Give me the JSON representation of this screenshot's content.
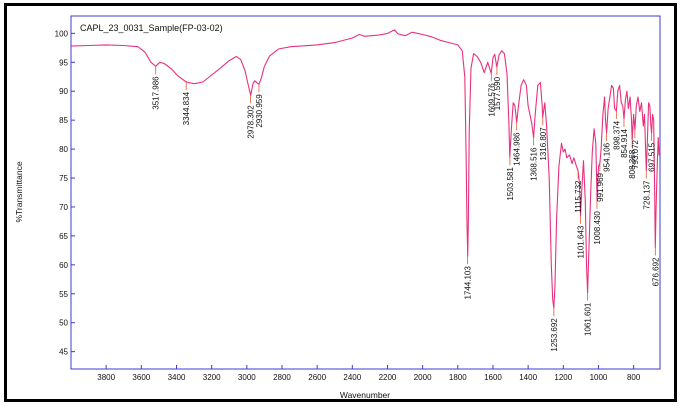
{
  "chart_data": {
    "type": "line",
    "title": "CAPL_23_0031_Sample(FP-03-02)",
    "xlabel": "Wavenumber",
    "ylabel": "%Transmittance",
    "xlim": [
      4000,
      650
    ],
    "ylim": [
      42,
      103
    ],
    "x_reversed": true,
    "grid": false,
    "colors": {
      "trace": "#e8317e",
      "annotation": "#e05a2a",
      "frame": "#3b3bd6"
    },
    "x_ticks": [
      3800,
      3600,
      3400,
      3200,
      3000,
      2800,
      2600,
      2400,
      2200,
      2000,
      1800,
      1600,
      1400,
      1200,
      1000,
      800
    ],
    "y_ticks": [
      45,
      50,
      55,
      60,
      65,
      70,
      75,
      80,
      85,
      90,
      95,
      100
    ],
    "peaks": [
      {
        "label": "3517.986",
        "x": 3517.986,
        "y": 94.3
      },
      {
        "label": "3344.834",
        "x": 3344.834,
        "y": 91.6
      },
      {
        "label": "2978.302",
        "x": 2978.302,
        "y": 89.3
      },
      {
        "label": "2930.959",
        "x": 2930.959,
        "y": 91.2
      },
      {
        "label": "1744.103",
        "x": 1744.103,
        "y": 61.5
      },
      {
        "label": "1609.576",
        "x": 1609.576,
        "y": 93.1
      },
      {
        "label": "1577.590",
        "x": 1577.59,
        "y": 94.2
      },
      {
        "label": "1503.581",
        "x": 1503.581,
        "y": 78.6
      },
      {
        "label": "1464.986",
        "x": 1464.986,
        "y": 84.6
      },
      {
        "label": "1368.516",
        "x": 1368.516,
        "y": 82.0
      },
      {
        "label": "1316.807",
        "x": 1316.807,
        "y": 85.5
      },
      {
        "label": "1253.692",
        "x": 1253.692,
        "y": 52.5
      },
      {
        "label": "1115.732",
        "x": 1115.732,
        "y": 76.3
      },
      {
        "label": "1101.643",
        "x": 1101.643,
        "y": 68.5
      },
      {
        "label": "1061.601",
        "x": 1061.601,
        "y": 55.2
      },
      {
        "label": "1008.430",
        "x": 1008.43,
        "y": 71.0
      },
      {
        "label": "991.969",
        "x": 991.969,
        "y": 77.6
      },
      {
        "label": "954.106",
        "x": 954.106,
        "y": 82.8
      },
      {
        "label": "898.374",
        "x": 898.374,
        "y": 86.6
      },
      {
        "label": "854.914",
        "x": 854.914,
        "y": 85.2
      },
      {
        "label": "808.368",
        "x": 808.368,
        "y": 81.6
      },
      {
        "label": "793.072",
        "x": 793.072,
        "y": 83.3
      },
      {
        "label": "728.137",
        "x": 728.137,
        "y": 76.3
      },
      {
        "label": "697.515",
        "x": 697.515,
        "y": 82.8
      },
      {
        "label": "676.692",
        "x": 676.692,
        "y": 63.0
      }
    ],
    "series": [
      {
        "points": [
          [
            4000,
            97.8
          ],
          [
            3900,
            97.9
          ],
          [
            3800,
            98.0
          ],
          [
            3700,
            97.9
          ],
          [
            3620,
            97.7
          ],
          [
            3580,
            96.8
          ],
          [
            3545,
            95.0
          ],
          [
            3518,
            94.3
          ],
          [
            3495,
            95.0
          ],
          [
            3470,
            94.8
          ],
          [
            3430,
            93.9
          ],
          [
            3390,
            92.6
          ],
          [
            3345,
            91.6
          ],
          [
            3300,
            91.3
          ],
          [
            3250,
            91.6
          ],
          [
            3200,
            92.8
          ],
          [
            3150,
            94.0
          ],
          [
            3100,
            95.3
          ],
          [
            3060,
            96.0
          ],
          [
            3035,
            95.5
          ],
          [
            3010,
            93.5
          ],
          [
            2990,
            90.8
          ],
          [
            2978,
            89.3
          ],
          [
            2965,
            91.3
          ],
          [
            2955,
            91.8
          ],
          [
            2940,
            91.4
          ],
          [
            2931,
            91.2
          ],
          [
            2918,
            92.2
          ],
          [
            2900,
            94.3
          ],
          [
            2870,
            96.1
          ],
          [
            2820,
            97.3
          ],
          [
            2750,
            97.7
          ],
          [
            2600,
            98.0
          ],
          [
            2500,
            98.4
          ],
          [
            2400,
            99.2
          ],
          [
            2360,
            99.8
          ],
          [
            2330,
            99.5
          ],
          [
            2250,
            99.7
          ],
          [
            2200,
            100.0
          ],
          [
            2160,
            100.6
          ],
          [
            2140,
            99.9
          ],
          [
            2100,
            99.6
          ],
          [
            2060,
            100.2
          ],
          [
            2000,
            99.8
          ],
          [
            1950,
            99.4
          ],
          [
            1900,
            98.8
          ],
          [
            1850,
            98.4
          ],
          [
            1800,
            98.0
          ],
          [
            1775,
            97.0
          ],
          [
            1760,
            92.5
          ],
          [
            1752,
            78.0
          ],
          [
            1748,
            68.0
          ],
          [
            1744,
            61.5
          ],
          [
            1740,
            68.0
          ],
          [
            1735,
            83.0
          ],
          [
            1725,
            94.0
          ],
          [
            1710,
            96.5
          ],
          [
            1690,
            96.0
          ],
          [
            1670,
            95.0
          ],
          [
            1650,
            93.2
          ],
          [
            1630,
            95.0
          ],
          [
            1610,
            93.1
          ],
          [
            1600,
            95.8
          ],
          [
            1590,
            96.4
          ],
          [
            1578,
            94.2
          ],
          [
            1565,
            96.3
          ],
          [
            1550,
            97.0
          ],
          [
            1535,
            96.5
          ],
          [
            1520,
            93.0
          ],
          [
            1510,
            85.0
          ],
          [
            1504,
            78.6
          ],
          [
            1495,
            83.5
          ],
          [
            1485,
            88.0
          ],
          [
            1475,
            87.5
          ],
          [
            1465,
            84.6
          ],
          [
            1455,
            87.5
          ],
          [
            1440,
            91.0
          ],
          [
            1425,
            92.0
          ],
          [
            1410,
            91.0
          ],
          [
            1400,
            87.5
          ],
          [
            1390,
            86.0
          ],
          [
            1380,
            84.5
          ],
          [
            1369,
            82.0
          ],
          [
            1360,
            86.0
          ],
          [
            1345,
            91.0
          ],
          [
            1330,
            91.5
          ],
          [
            1320,
            87.5
          ],
          [
            1317,
            85.5
          ],
          [
            1305,
            88.0
          ],
          [
            1295,
            84.0
          ],
          [
            1280,
            75.0
          ],
          [
            1268,
            60.0
          ],
          [
            1260,
            54.0
          ],
          [
            1254,
            52.5
          ],
          [
            1248,
            56.0
          ],
          [
            1238,
            68.0
          ],
          [
            1225,
            77.0
          ],
          [
            1210,
            81.0
          ],
          [
            1200,
            79.5
          ],
          [
            1190,
            80.0
          ],
          [
            1180,
            78.5
          ],
          [
            1165,
            79.0
          ],
          [
            1150,
            77.5
          ],
          [
            1140,
            78.5
          ],
          [
            1125,
            77.0
          ],
          [
            1116,
            76.3
          ],
          [
            1108,
            74.0
          ],
          [
            1102,
            68.5
          ],
          [
            1095,
            73.0
          ],
          [
            1085,
            78.0
          ],
          [
            1075,
            71.0
          ],
          [
            1068,
            60.0
          ],
          [
            1062,
            55.2
          ],
          [
            1055,
            62.0
          ],
          [
            1045,
            72.0
          ],
          [
            1035,
            79.5
          ],
          [
            1025,
            83.5
          ],
          [
            1015,
            81.0
          ],
          [
            1008,
            71.0
          ],
          [
            1000,
            77.0
          ],
          [
            992,
            77.6
          ],
          [
            985,
            80.0
          ],
          [
            975,
            86.0
          ],
          [
            965,
            89.0
          ],
          [
            960,
            85.0
          ],
          [
            954,
            82.8
          ],
          [
            945,
            87.0
          ],
          [
            935,
            89.0
          ],
          [
            925,
            91.0
          ],
          [
            915,
            90.5
          ],
          [
            908,
            87.0
          ],
          [
            898,
            86.6
          ],
          [
            890,
            90.0
          ],
          [
            880,
            91.0
          ],
          [
            870,
            88.0
          ],
          [
            862,
            87.5
          ],
          [
            855,
            85.2
          ],
          [
            847,
            88.5
          ],
          [
            838,
            90.0
          ],
          [
            830,
            87.0
          ],
          [
            820,
            89.0
          ],
          [
            812,
            85.0
          ],
          [
            808,
            81.6
          ],
          [
            800,
            86.0
          ],
          [
            793,
            83.3
          ],
          [
            785,
            87.5
          ],
          [
            775,
            89.0
          ],
          [
            765,
            86.5
          ],
          [
            755,
            88.0
          ],
          [
            745,
            84.0
          ],
          [
            738,
            86.0
          ],
          [
            732,
            80.0
          ],
          [
            728,
            76.3
          ],
          [
            722,
            81.0
          ],
          [
            715,
            88.0
          ],
          [
            708,
            87.5
          ],
          [
            702,
            84.0
          ],
          [
            698,
            82.8
          ],
          [
            692,
            86.0
          ],
          [
            686,
            85.0
          ],
          [
            680,
            72.0
          ],
          [
            677,
            63.0
          ],
          [
            672,
            70.0
          ],
          [
            665,
            78.0
          ],
          [
            660,
            82.0
          ],
          [
            655,
            79.0
          ],
          [
            650,
            80.0
          ]
        ]
      }
    ]
  }
}
